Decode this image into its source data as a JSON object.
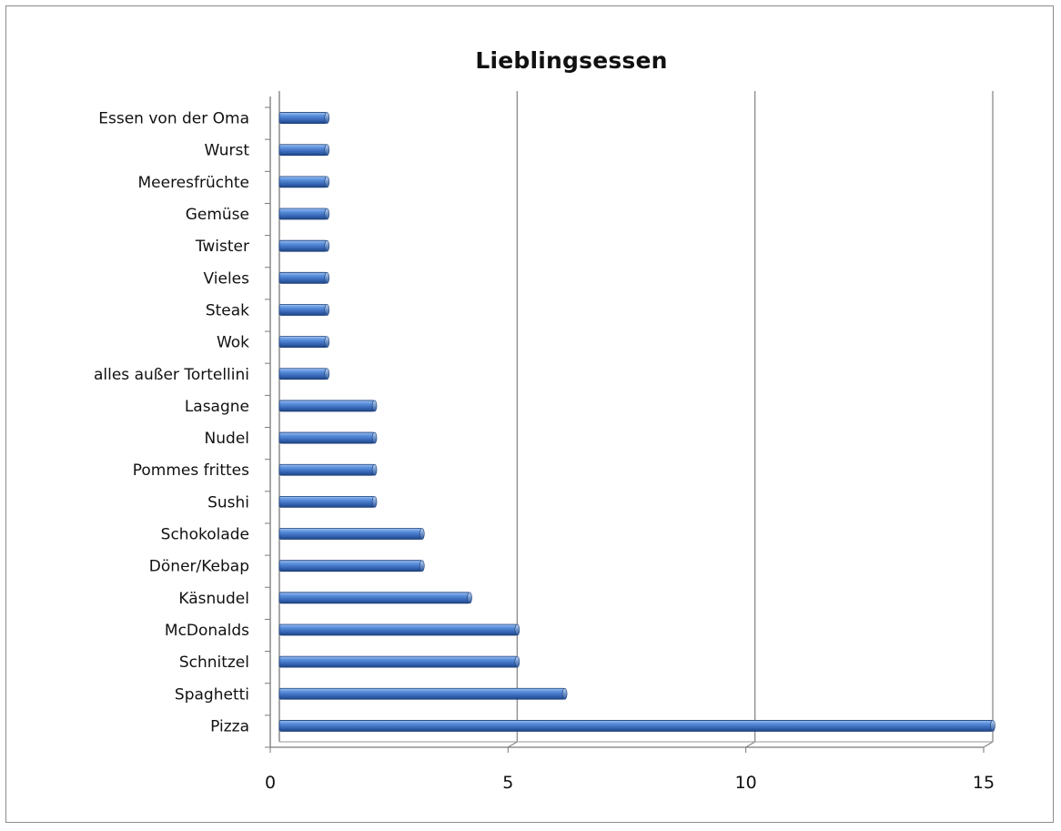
{
  "chart_data": {
    "type": "bar",
    "orientation": "horizontal",
    "title": "Lieblingsessen",
    "xlabel": "",
    "ylabel": "",
    "categories": [
      "Pizza",
      "Spaghetti",
      "Schnitzel",
      "McDonalds",
      "Käsnudel",
      "Döner/Kebap",
      "Schokolade",
      "Sushi",
      "Pommes frittes",
      "Nudel",
      "Lasagne",
      "alles außer Tortellini",
      "Wok",
      "Steak",
      "Vieles",
      "Twister",
      "Gemüse",
      "Meeresfrüchte",
      "Wurst",
      "Essen von der Oma"
    ],
    "values": [
      15,
      6,
      5,
      5,
      4,
      3,
      3,
      2,
      2,
      2,
      2,
      1,
      1,
      1,
      1,
      1,
      1,
      1,
      1,
      1
    ],
    "xlim": [
      0,
      15
    ],
    "xticks": [
      0,
      5,
      10,
      15
    ],
    "grid": "vertical major gridlines",
    "legend": "none",
    "bar_color": "#3e6fc0"
  }
}
